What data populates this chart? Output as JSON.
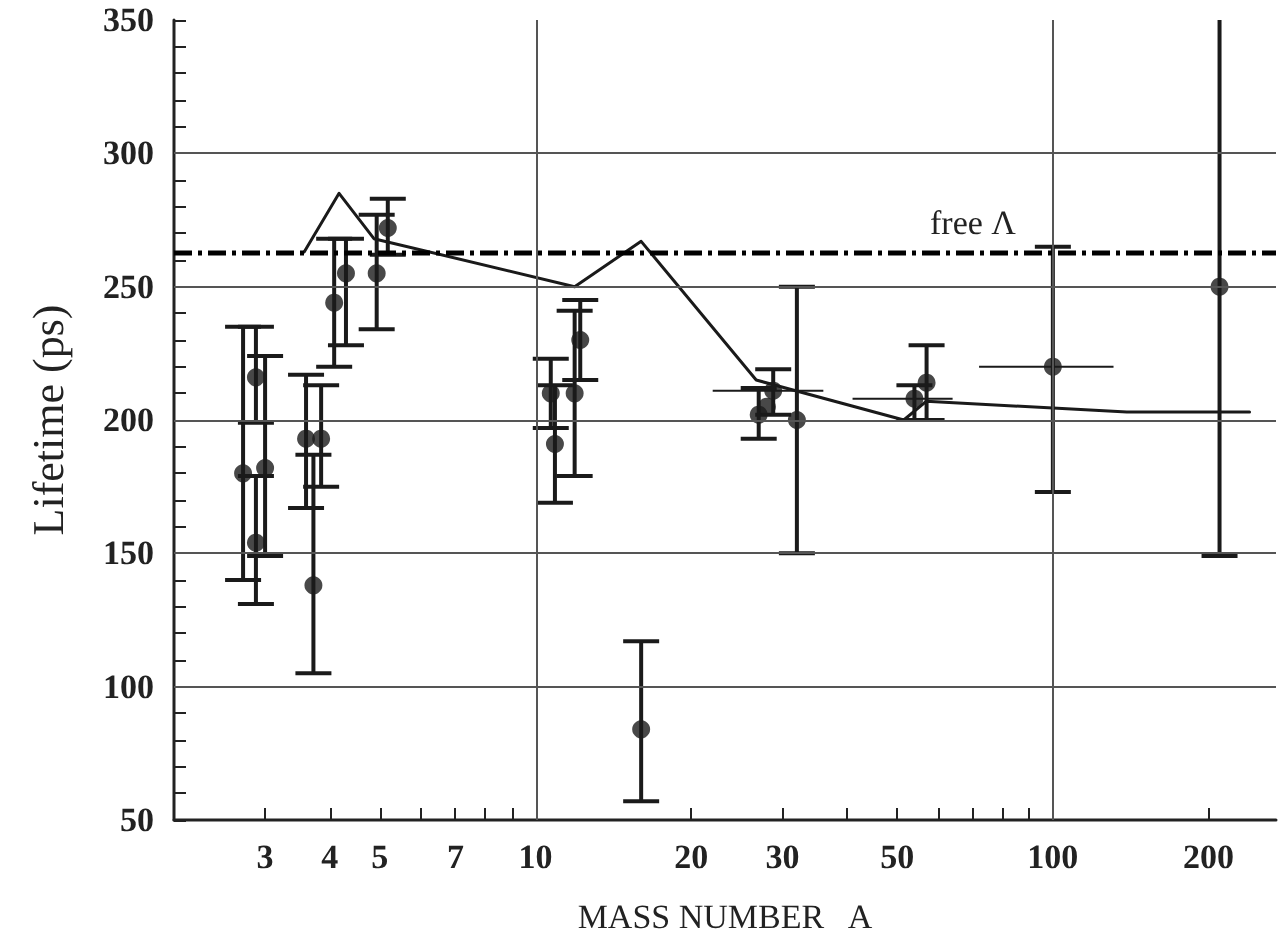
{
  "chart_data": {
    "type": "scatter",
    "xlabel": "MASS NUMBER   A",
    "ylabel": "Lifetime (ps)",
    "log": "x",
    "xlim": [
      2,
      270
    ],
    "ylim": [
      50,
      350
    ],
    "xticks": [
      3,
      4,
      5,
      {
        "value": 6,
        "label": null
      },
      7,
      {
        "value": 8,
        "label": null
      },
      {
        "value": 9,
        "label": null
      },
      10,
      20,
      30,
      {
        "value": 40,
        "label": null
      },
      50,
      {
        "value": 60,
        "label": null
      },
      {
        "value": 70,
        "label": null
      },
      {
        "value": 80,
        "label": null
      },
      {
        "value": 90,
        "label": null
      },
      100,
      200
    ],
    "yticks": [
      50,
      {
        "value": 60,
        "label": null
      },
      {
        "value": 70,
        "label": null
      },
      {
        "value": 80,
        "label": null
      },
      {
        "value": 90,
        "label": null
      },
      100,
      {
        "value": 110,
        "label": null
      },
      {
        "value": 120,
        "label": null
      },
      {
        "value": 130,
        "label": null
      },
      {
        "value": 140,
        "label": null
      },
      150,
      {
        "value": 160,
        "label": null
      },
      {
        "value": 170,
        "label": null
      },
      {
        "value": 180,
        "label": null
      },
      {
        "value": 190,
        "label": null
      },
      200,
      {
        "value": 210,
        "label": null
      },
      {
        "value": 220,
        "label": null
      },
      {
        "value": 230,
        "label": null
      },
      {
        "value": 240,
        "label": null
      },
      250,
      {
        "value": 260,
        "label": null
      },
      {
        "value": 270,
        "label": null
      },
      {
        "value": 280,
        "label": null
      },
      {
        "value": 290,
        "label": null
      },
      300,
      {
        "value": 310,
        "label": null
      },
      {
        "value": 320,
        "label": null
      },
      {
        "value": 330,
        "label": null
      },
      {
        "value": 340,
        "label": null
      },
      350
    ],
    "grid": true,
    "marker": "circle",
    "series": [
      {
        "color": "#1a1a1a",
        "x": [
          2.72,
          2.88,
          2.88,
          3.0,
          3.6,
          3.85,
          3.72,
          4.08,
          4.3,
          4.93,
          5.18,
          10.7,
          10.9,
          11.9,
          12.2,
          16,
          27,
          28,
          28.8,
          32,
          54,
          57,
          100,
          210
        ],
        "values": [
          180,
          216,
          154,
          182,
          193,
          193,
          138,
          244,
          255,
          255,
          272,
          210,
          191,
          210,
          230,
          84,
          202,
          205,
          211,
          200,
          208,
          214,
          220,
          250
        ],
        "errors": [
          [
            140,
            235
          ],
          [
            199,
            235
          ],
          [
            131,
            179
          ],
          [
            149,
            224
          ],
          [
            167,
            217
          ],
          [
            175,
            213
          ],
          [
            105,
            187
          ],
          [
            220,
            268
          ],
          [
            228,
            268
          ],
          [
            234,
            277
          ],
          [
            262,
            283
          ],
          [
            197,
            223
          ],
          [
            169,
            213
          ],
          [
            179,
            241
          ],
          [
            215,
            245
          ],
          [
            57,
            117
          ],
          [
            193,
            212
          ],
          null,
          [
            202,
            219
          ],
          [
            150,
            250
          ],
          [
            200,
            213
          ],
          [
            200,
            228
          ],
          [
            173,
            265
          ],
          [
            149,
            350
          ]
        ],
        "xerrors": [
          null,
          null,
          null,
          null,
          null,
          null,
          null,
          null,
          null,
          null,
          null,
          null,
          null,
          null,
          null,
          null,
          null,
          null,
          [
            22,
            36
          ],
          null,
          [
            41,
            64
          ],
          null,
          [
            72,
            131
          ],
          null
        ]
      },
      {
        "type": "line",
        "color": "#1a1a1a",
        "marker": "none",
        "line_style": "solid",
        "x": [
          3.57,
          4.17,
          4.87,
          11.9,
          16,
          26.7,
          51.5,
          56.9,
          139,
          240
        ],
        "values": [
          263,
          285,
          268,
          250,
          267,
          215,
          200,
          207,
          203,
          203
        ]
      }
    ],
    "ref_lines": [
      {
        "axis": "y",
        "value": 263,
        "label": "free Λ",
        "color": "#000000",
        "line_style": "dashdot"
      }
    ]
  }
}
